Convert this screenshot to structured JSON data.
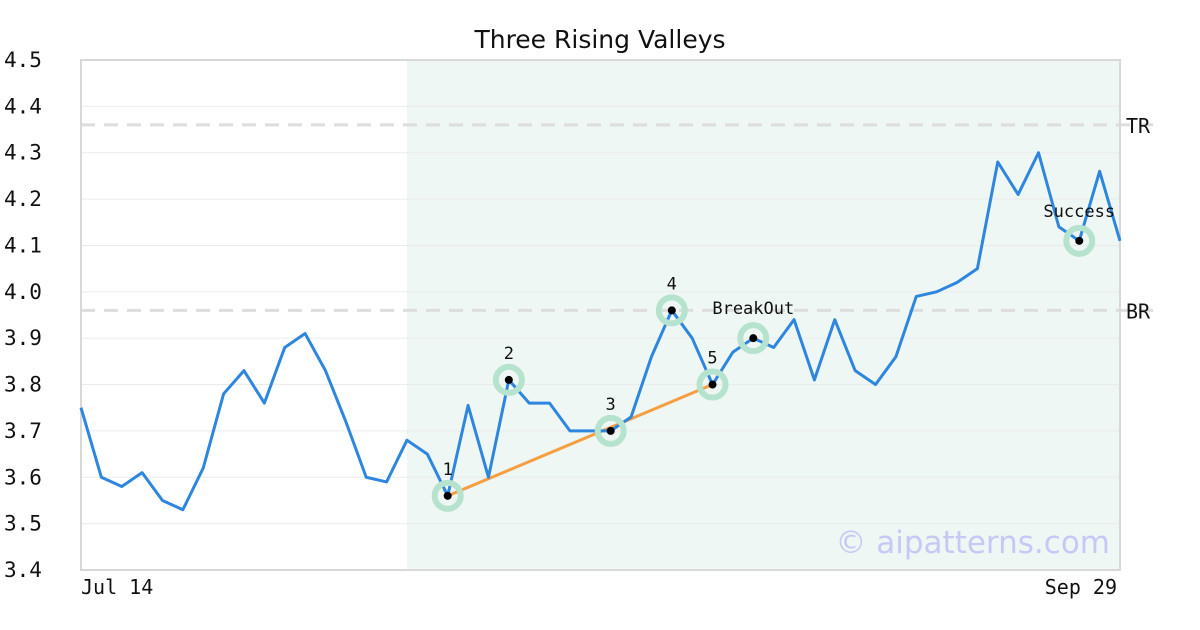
{
  "chart_data": {
    "type": "line",
    "title": "Three Rising Valleys",
    "xlabel": "",
    "ylabel": "",
    "ylim": [
      3.4,
      4.5
    ],
    "y_ticks": [
      "3.4",
      "3.5",
      "3.6",
      "3.7",
      "3.8",
      "3.9",
      "4.0",
      "4.1",
      "4.2",
      "4.3",
      "4.4",
      "4.5"
    ],
    "x_tick_labels": [
      "Jul 14",
      "Sep 29"
    ],
    "grid": true,
    "series": [
      {
        "values": [
          3.75,
          3.6,
          3.58,
          3.61,
          3.55,
          3.53,
          3.62,
          3.78,
          3.83,
          3.76,
          3.88,
          3.91,
          3.83,
          3.72,
          3.6,
          3.59,
          3.68,
          3.65,
          3.56,
          3.755,
          3.6,
          3.81,
          3.76,
          3.76,
          3.7,
          3.7,
          3.7,
          3.73,
          3.86,
          3.96,
          3.9,
          3.8,
          3.87,
          3.9,
          3.88,
          3.94,
          3.81,
          3.94,
          3.83,
          3.8,
          3.86,
          3.99,
          4.0,
          4.02,
          4.05,
          4.28,
          4.21,
          4.3,
          4.14,
          4.11,
          4.26,
          4.11
        ],
        "color": "#2e86de"
      }
    ],
    "reference_lines": [
      {
        "label": "TR",
        "value": 4.36
      },
      {
        "label": "BR",
        "value": 3.96
      }
    ],
    "highlight_range": {
      "start_index": 16,
      "end_index": 51,
      "color": "#eef7f3"
    },
    "markers": [
      {
        "label": "1",
        "index": 18,
        "value": 3.56
      },
      {
        "label": "2",
        "index": 21,
        "value": 3.81
      },
      {
        "label": "3",
        "index": 26,
        "value": 3.7
      },
      {
        "label": "4",
        "index": 29,
        "value": 3.96
      },
      {
        "label": "5",
        "index": 31,
        "value": 3.8
      },
      {
        "label": "BreakOut",
        "index": 33,
        "value": 3.9
      },
      {
        "label": "Success",
        "index": 49,
        "value": 4.11
      }
    ],
    "trendline": {
      "from_index": 18,
      "from_value": 3.56,
      "to_index": 31,
      "to_value": 3.8,
      "color": "#f59e42"
    },
    "watermark": "© aipatterns.com",
    "colors": {
      "line": "#2e86de",
      "marker_halo": "#b6e3cd",
      "trend": "#f59e42",
      "ref_line": "#dddddd",
      "watermark": "#c8c8f6"
    }
  }
}
